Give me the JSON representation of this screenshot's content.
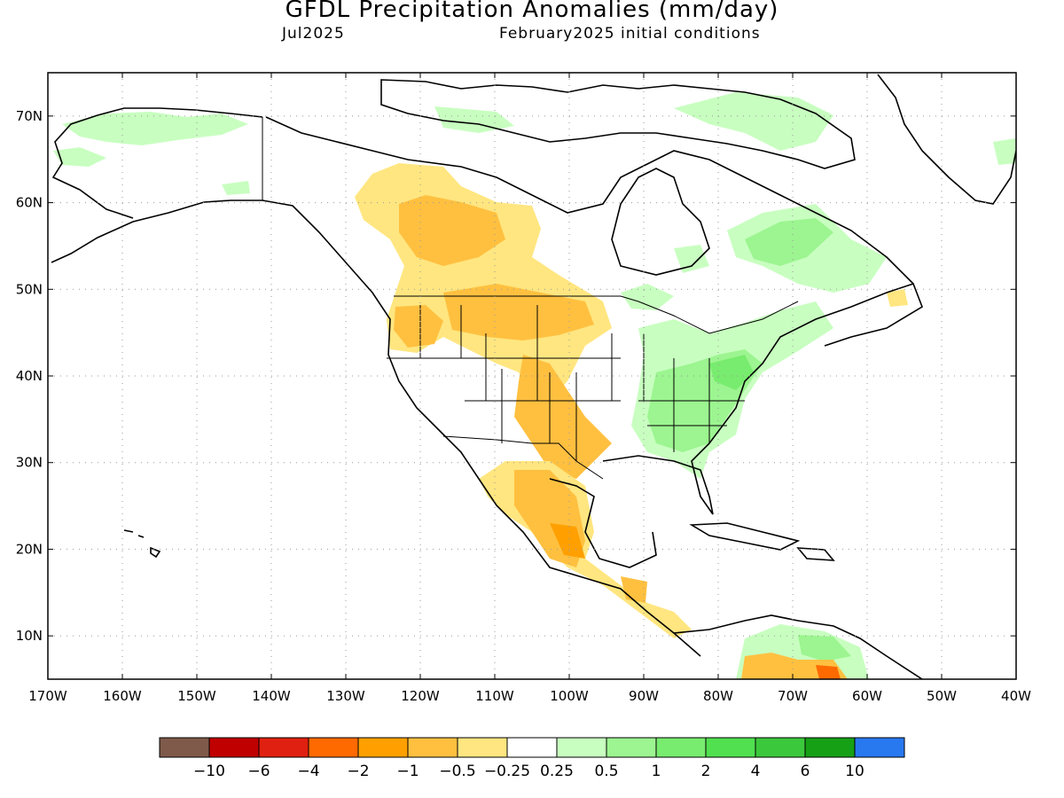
{
  "title": "GFDL Precipitation Anomalies (mm/day)",
  "valid_month": "Jul2025",
  "initial_conditions": "February2025 initial conditions",
  "map": {
    "projection": "lat-lon",
    "lon_range": [
      -170,
      -40
    ],
    "lat_range": [
      5,
      75
    ],
    "grid": "dotted",
    "lat_ticks": [
      {
        "value": 70,
        "label": "70N"
      },
      {
        "value": 60,
        "label": "60N"
      },
      {
        "value": 50,
        "label": "50N"
      },
      {
        "value": 40,
        "label": "40N"
      },
      {
        "value": 30,
        "label": "30N"
      },
      {
        "value": 20,
        "label": "20N"
      },
      {
        "value": 10,
        "label": "10N"
      }
    ],
    "lon_ticks": [
      {
        "value": -170,
        "label": "170W"
      },
      {
        "value": -160,
        "label": "160W"
      },
      {
        "value": -150,
        "label": "150W"
      },
      {
        "value": -140,
        "label": "140W"
      },
      {
        "value": -130,
        "label": "130W"
      },
      {
        "value": -120,
        "label": "120W"
      },
      {
        "value": -110,
        "label": "110W"
      },
      {
        "value": -100,
        "label": "100W"
      },
      {
        "value": -90,
        "label": "90W"
      },
      {
        "value": -80,
        "label": "80W"
      },
      {
        "value": -70,
        "label": "70W"
      },
      {
        "value": -60,
        "label": "60W"
      },
      {
        "value": -50,
        "label": "50W"
      },
      {
        "value": -40,
        "label": "40W"
      }
    ]
  },
  "colorbar": {
    "colors": [
      "#7f5a4a",
      "#c00000",
      "#e02010",
      "#ff6a00",
      "#ffa000",
      "#ffc040",
      "#ffe680",
      "#ffffff",
      "#c8ffc0",
      "#9cf590",
      "#78ec6e",
      "#50e050",
      "#3cc83c",
      "#16a016",
      "#2878f0"
    ],
    "labels": [
      "−10",
      "−6",
      "−4",
      "−2",
      "−1",
      "−0.5",
      "−0.25",
      "0.25",
      "0.5",
      "1",
      "2",
      "4",
      "6",
      "10"
    ]
  },
  "anomaly_colors": {
    "dry_light": "#ffe680",
    "dry_mid": "#ffc040",
    "dry_strong": "#ffa000",
    "dry_severe": "#ff6a00",
    "wet_light": "#c8ffc0",
    "wet_mid": "#9cf590",
    "wet_strong": "#78ec6e"
  }
}
